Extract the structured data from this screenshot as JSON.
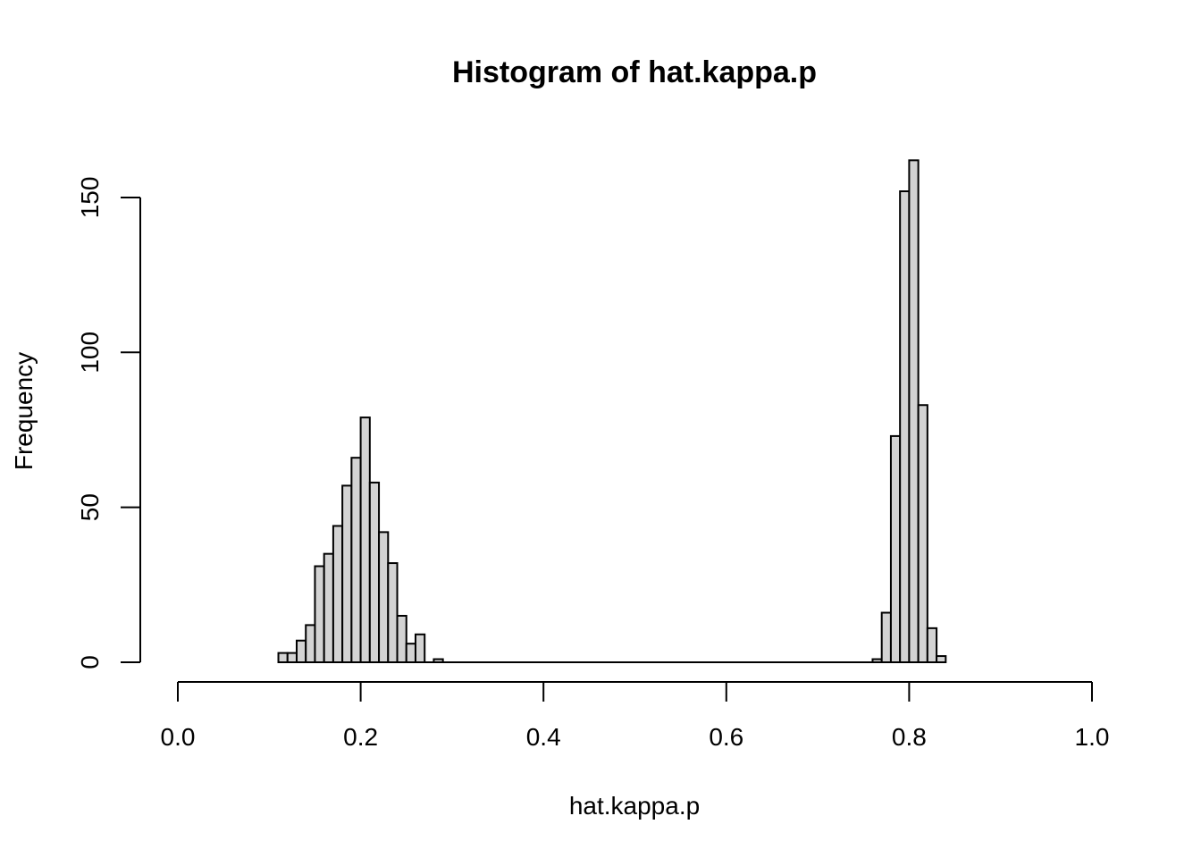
{
  "chart_data": {
    "type": "bar",
    "title": "Histogram of hat.kappa.p",
    "xlabel": "hat.kappa.p",
    "ylabel": "Frequency",
    "xlim": [
      0,
      1
    ],
    "ylim": [
      0,
      162
    ],
    "x_ticks": [
      0.0,
      0.2,
      0.4,
      0.6,
      0.8,
      1.0
    ],
    "x_tick_labels": [
      "0.0",
      "0.2",
      "0.4",
      "0.6",
      "0.8",
      "1.0"
    ],
    "y_ticks": [
      0,
      50,
      100,
      150
    ],
    "y_tick_labels": [
      "0",
      "50",
      "100",
      "150"
    ],
    "bin_width": 0.01,
    "bins": [
      {
        "start": 0.11,
        "count": 3
      },
      {
        "start": 0.12,
        "count": 3
      },
      {
        "start": 0.13,
        "count": 7
      },
      {
        "start": 0.14,
        "count": 12
      },
      {
        "start": 0.15,
        "count": 31
      },
      {
        "start": 0.16,
        "count": 35
      },
      {
        "start": 0.17,
        "count": 44
      },
      {
        "start": 0.18,
        "count": 57
      },
      {
        "start": 0.19,
        "count": 66
      },
      {
        "start": 0.2,
        "count": 79
      },
      {
        "start": 0.21,
        "count": 58
      },
      {
        "start": 0.22,
        "count": 42
      },
      {
        "start": 0.23,
        "count": 32
      },
      {
        "start": 0.24,
        "count": 15
      },
      {
        "start": 0.25,
        "count": 6
      },
      {
        "start": 0.26,
        "count": 9
      },
      {
        "start": 0.28,
        "count": 1
      },
      {
        "start": 0.76,
        "count": 1
      },
      {
        "start": 0.77,
        "count": 16
      },
      {
        "start": 0.78,
        "count": 73
      },
      {
        "start": 0.79,
        "count": 152
      },
      {
        "start": 0.8,
        "count": 162
      },
      {
        "start": 0.81,
        "count": 83
      },
      {
        "start": 0.82,
        "count": 11
      },
      {
        "start": 0.83,
        "count": 2
      }
    ],
    "baseline_range": [
      0.11,
      0.84
    ],
    "grid": false,
    "legend": "none",
    "colors": {
      "bar_fill": "#d3d3d3",
      "bar_stroke": "#000000"
    }
  }
}
